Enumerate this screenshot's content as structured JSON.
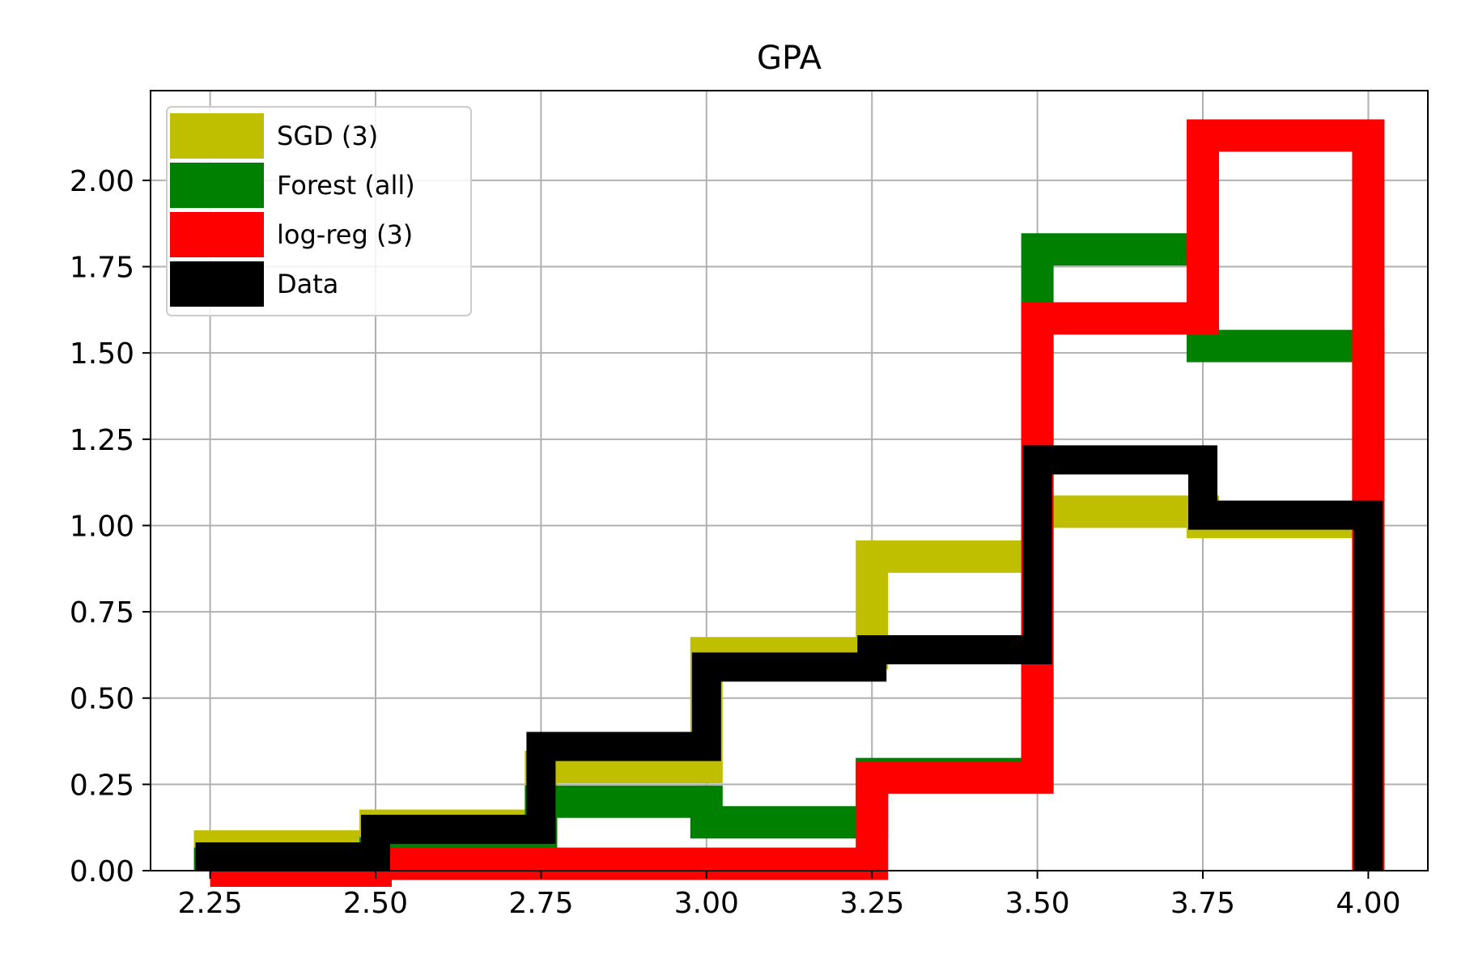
{
  "chart_data": {
    "type": "histogram-step",
    "title": "GPA",
    "xlabel": "",
    "ylabel": "",
    "xlim": [
      2.16,
      4.09
    ],
    "ylim": [
      0,
      2.26
    ],
    "xticks": [
      2.25,
      2.5,
      2.75,
      3.0,
      3.25,
      3.5,
      3.75,
      4.0
    ],
    "xtick_labels": [
      "2.25",
      "2.50",
      "2.75",
      "3.00",
      "3.25",
      "3.50",
      "3.75",
      "4.00"
    ],
    "yticks": [
      0,
      0.25,
      0.5,
      0.75,
      1.0,
      1.25,
      1.5,
      1.75,
      2.0
    ],
    "ytick_labels": [
      "0.00",
      "0.25",
      "0.50",
      "0.75",
      "1.00",
      "1.25",
      "1.50",
      "1.75",
      "2.00"
    ],
    "grid": true,
    "legend_position": "top-left",
    "bin_edges": [
      2.25,
      2.5,
      2.75,
      3.0,
      3.25,
      3.5,
      3.75,
      4.0
    ],
    "series": [
      {
        "name": "SGD (3)",
        "color": "#bfbf00",
        "values": [
          0.07,
          0.13,
          0.3,
          0.63,
          0.91,
          1.04,
          1.01
        ]
      },
      {
        "name": "Forest (all)",
        "color": "#008000",
        "values": [
          0.02,
          0.05,
          0.2,
          0.14,
          0.28,
          1.8,
          1.52
        ]
      },
      {
        "name": "log-reg (3)",
        "color": "#ff0000",
        "values": [
          0.0,
          0.02,
          0.02,
          0.02,
          0.27,
          1.6,
          2.13
        ]
      },
      {
        "name": "Data",
        "color": "#000000",
        "values": [
          0.04,
          0.12,
          0.36,
          0.59,
          0.64,
          1.19,
          1.03
        ]
      }
    ]
  }
}
